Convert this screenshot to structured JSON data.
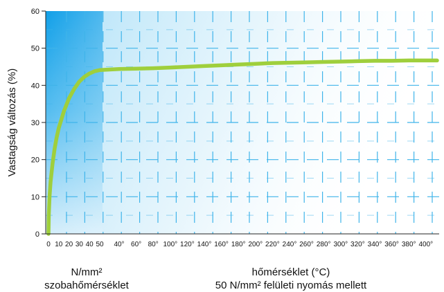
{
  "chart_data": {
    "type": "line",
    "ylabel": "Vastagság változás (%)",
    "ylim": [
      0,
      60
    ],
    "y_ticks": [
      "0",
      "10",
      "20",
      "30",
      "40",
      "50",
      "60"
    ],
    "x_ticks_pressure": [
      "0",
      "10",
      "20",
      "30",
      "40",
      "50"
    ],
    "x_ticks_temperature": [
      "40°",
      "60°",
      "80°",
      "100°",
      "120°",
      "140°",
      "160°",
      "180°",
      "200°",
      "220°",
      "240°",
      "260°",
      "280°",
      "300°",
      "320°",
      "340°",
      "360°",
      "380°",
      "400°"
    ],
    "xlabel_left": [
      "N/mm²",
      "szobahőmérséklet"
    ],
    "xlabel_right": [
      "hőmérséklet (°C)",
      "50 N/mm² felületi nyomás mellett"
    ],
    "grid": true,
    "colors": {
      "curve": "#9fcf3c",
      "pressure_zone": "#1aa3e8",
      "grid": "#3fb4ea",
      "axis": "#222222"
    },
    "series": [
      {
        "segment": "pressure",
        "x": [
          0,
          0.3,
          1,
          2,
          4,
          6,
          8,
          10,
          15,
          20,
          25,
          30,
          35,
          40,
          45,
          50
        ],
        "y": [
          0,
          5,
          10,
          14,
          19,
          23,
          26,
          28.5,
          33,
          36.5,
          39,
          41,
          42.3,
          43.2,
          43.8,
          44.1
        ]
      },
      {
        "segment": "temperature",
        "x": [
          40,
          60,
          80,
          100,
          120,
          140,
          160,
          180,
          200,
          220,
          240,
          260,
          280,
          300,
          320,
          340,
          360,
          380,
          400
        ],
        "y": [
          44.4,
          44.5,
          44.6,
          44.8,
          45.0,
          45.2,
          45.4,
          45.6,
          45.8,
          46.0,
          46.1,
          46.2,
          46.3,
          46.4,
          46.5,
          46.6,
          46.6,
          46.7,
          46.7
        ]
      }
    ]
  }
}
